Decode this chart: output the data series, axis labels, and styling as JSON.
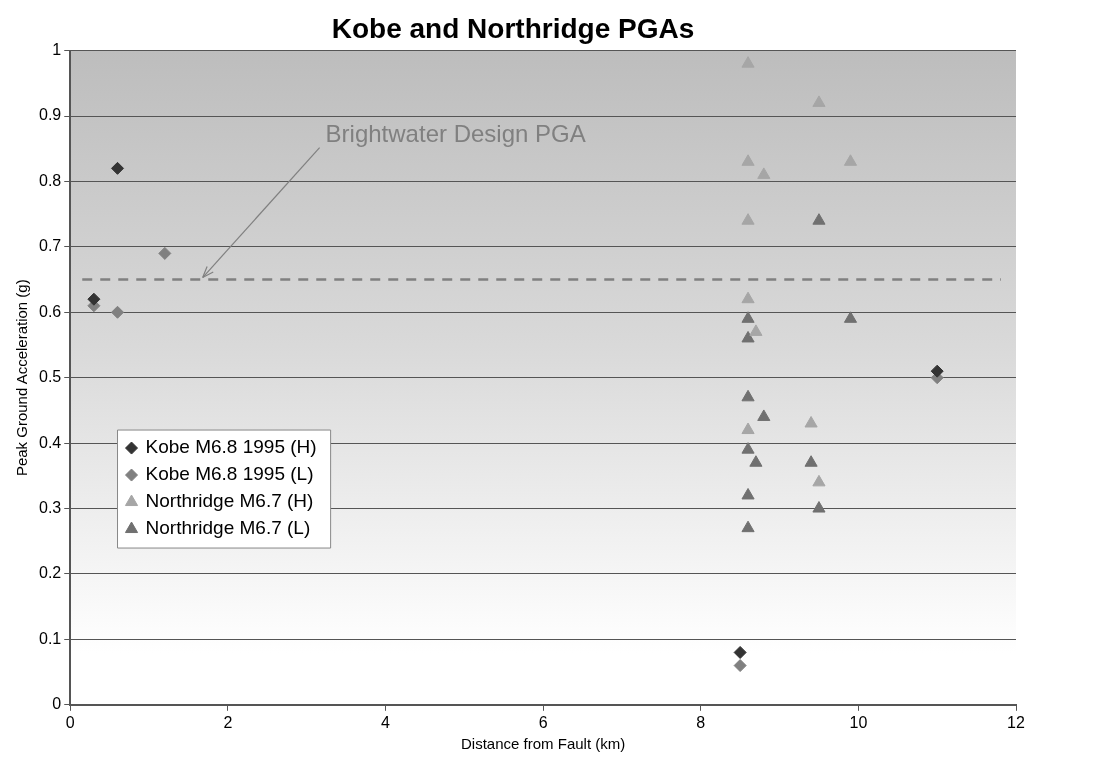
{
  "chart_data": {
    "type": "scatter",
    "title": "Kobe and Northridge PGAs",
    "xlabel": "Distance from Fault (km)",
    "ylabel": "Peak Ground Acceleration (g)",
    "xlim": [
      0,
      12
    ],
    "xticks": [
      0,
      2,
      4,
      6,
      8,
      10,
      12
    ],
    "ylim": [
      0,
      1
    ],
    "yticks": [
      0,
      0.1,
      0.2,
      0.3,
      0.4,
      0.5,
      0.6,
      0.7,
      0.8,
      0.9,
      1
    ],
    "grid": "y",
    "legend": "left",
    "ref_lines": [
      {
        "axis": "y",
        "value": 0.65,
        "label": "Brightwater Design PGA",
        "color": "#808080",
        "line_style": "dashed"
      }
    ],
    "series": [
      {
        "name": "Kobe M6.8 1995 (H)",
        "color": "#333333",
        "marker": "diamond",
        "x": [
          0.3,
          0.6,
          8.5,
          11
        ],
        "values": [
          0.62,
          0.82,
          0.08,
          0.51
        ]
      },
      {
        "name": "Kobe M6.8 1995 (L)",
        "color": "#808080",
        "marker": "diamond",
        "x": [
          0.3,
          0.6,
          1.2,
          8.5,
          11
        ],
        "values": [
          0.61,
          0.6,
          0.69,
          0.06,
          0.5
        ]
      },
      {
        "name": "Northridge M6.7 (H)",
        "color": "#a6a6a6",
        "marker": "triangle",
        "x": [
          8.6,
          9.5,
          8.6,
          8.8,
          9.9,
          8.6,
          8.6,
          8.7,
          8.6,
          9.4,
          9.5
        ],
        "values": [
          0.98,
          0.92,
          0.83,
          0.81,
          0.83,
          0.74,
          0.62,
          0.57,
          0.42,
          0.43,
          0.34
        ]
      },
      {
        "name": "Northridge M6.7 (L)",
        "color": "#707070",
        "marker": "triangle",
        "x": [
          9.5,
          8.6,
          9.9,
          8.6,
          8.6,
          8.8,
          8.6,
          8.7,
          9.4,
          8.6,
          9.5,
          8.6
        ],
        "values": [
          0.74,
          0.59,
          0.59,
          0.56,
          0.47,
          0.44,
          0.39,
          0.37,
          0.37,
          0.32,
          0.3,
          0.27
        ]
      }
    ]
  }
}
